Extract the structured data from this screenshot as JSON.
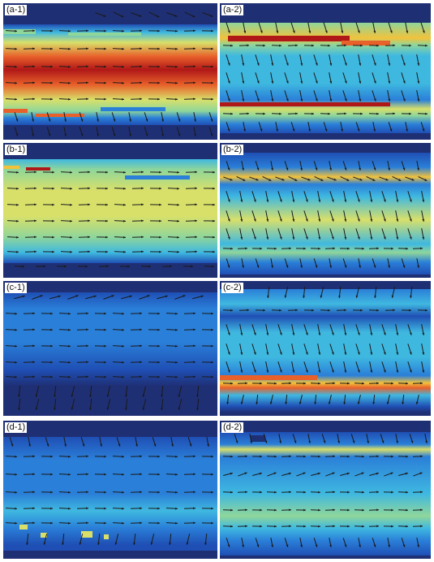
{
  "panels": [
    {
      "id": "a1",
      "label": "(a-1)"
    },
    {
      "id": "a2",
      "label": "(a-2)"
    },
    {
      "id": "b1",
      "label": "(b-1)"
    },
    {
      "id": "b2",
      "label": "(b-2)"
    },
    {
      "id": "c1",
      "label": "(c-1)"
    },
    {
      "id": "c2",
      "label": "(c-2)"
    },
    {
      "id": "d1",
      "label": "(d-1)"
    },
    {
      "id": "d2",
      "label": "(d-2)"
    }
  ],
  "colors": {
    "background": "#1f2f74",
    "arrow": "#1a1a1a",
    "colormap": [
      "#1f2f74",
      "#1f4fb4",
      "#2a7fd8",
      "#3fb8e0",
      "#8fd69a",
      "#d8e06a",
      "#f2c23c",
      "#e8602a",
      "#b01818"
    ]
  }
}
